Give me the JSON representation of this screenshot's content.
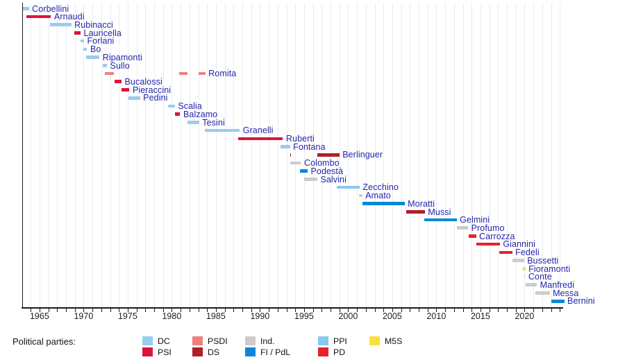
{
  "chart_data": {
    "type": "bar",
    "variant": "gantt-timeline",
    "description_of_content": "Timeline of Italian ministers responsible for university and scientific research, colored by political party",
    "x_range": [
      1963,
      2024.5
    ],
    "x_tick_interval_years": 1,
    "x_tick_labels": [
      "1965",
      "1970",
      "1975",
      "1980",
      "1985",
      "1990",
      "1995",
      "2000",
      "2005",
      "2010",
      "2015",
      "2020"
    ],
    "x_tick_label_years": [
      1965,
      1970,
      1975,
      1980,
      1985,
      1990,
      1995,
      2000,
      2005,
      2010,
      2015,
      2020
    ],
    "grid": "vertical-yearly",
    "legend_position": "bottom",
    "party_colors": {
      "DC": "#99CCEE",
      "PSI": "#DC143C",
      "PSDI": "#F08080",
      "DS": "#B01E28",
      "Ind.": "#CCCCCC",
      "FI/PdL": "#0B87D7",
      "PPI": "#89C8F0",
      "PD": "#E8212B",
      "M5S": "#F7E139"
    },
    "ministers": [
      {
        "name": "Corbellini",
        "party": "DC",
        "segments": [
          [
            1963.0,
            1963.8
          ]
        ]
      },
      {
        "name": "Arnaudi",
        "party": "PSI",
        "segments": [
          [
            1963.5,
            1966.3
          ]
        ]
      },
      {
        "name": "Rubinacci",
        "party": "DC",
        "segments": [
          [
            1966.2,
            1968.6
          ]
        ]
      },
      {
        "name": "Lauricella",
        "party": "PSI",
        "segments": [
          [
            1968.95,
            1969.65
          ]
        ]
      },
      {
        "name": "Forlani",
        "party": "DC",
        "segments": [
          [
            1969.65,
            1970.05
          ]
        ]
      },
      {
        "name": "Bo",
        "party": "DC",
        "segments": [
          [
            1970.0,
            1970.4
          ]
        ]
      },
      {
        "name": "Ripamonti",
        "party": "DC",
        "segments": [
          [
            1970.25,
            1971.8
          ]
        ]
      },
      {
        "name": "Sullo",
        "party": "DC",
        "segments": [
          [
            1972.2,
            1972.65
          ]
        ]
      },
      {
        "name": "Romita",
        "party": "PSDI",
        "segments": [
          [
            1972.4,
            1973.4
          ],
          [
            1980.8,
            1981.8
          ],
          [
            1983.0,
            1983.8
          ]
        ]
      },
      {
        "name": "Bucalossi",
        "party": "PSI",
        "segments": [
          [
            1973.5,
            1974.3
          ]
        ]
      },
      {
        "name": "Pieraccini",
        "party": "PSI",
        "segments": [
          [
            1974.3,
            1975.2
          ]
        ]
      },
      {
        "name": "Pedini",
        "party": "DC",
        "segments": [
          [
            1975.1,
            1976.4
          ]
        ]
      },
      {
        "name": "Scalia",
        "party": "DC",
        "segments": [
          [
            1979.55,
            1980.35
          ]
        ]
      },
      {
        "name": "Balzamo",
        "party": "PSI",
        "segments": [
          [
            1980.4,
            1980.95
          ]
        ]
      },
      {
        "name": "Tesini",
        "party": "DC",
        "segments": [
          [
            1981.75,
            1983.1
          ]
        ]
      },
      {
        "name": "Granelli",
        "party": "DC",
        "segments": [
          [
            1983.75,
            1987.7
          ]
        ]
      },
      {
        "name": "Ruberti",
        "party": "PSI",
        "segments": [
          [
            1987.5,
            1992.6
          ]
        ]
      },
      {
        "name": "Fontana",
        "party": "DC",
        "segments": [
          [
            1992.3,
            1993.4
          ]
        ]
      },
      {
        "name": "Berlinguer",
        "party": "DS",
        "segments": [
          [
            1993.4,
            1993.55
          ],
          [
            1996.5,
            1999.0
          ]
        ]
      },
      {
        "name": "Colombo",
        "party": "Ind.",
        "segments": [
          [
            1993.45,
            1994.65
          ]
        ]
      },
      {
        "name": "Podestà",
        "party": "FI/PdL",
        "segments": [
          [
            1994.5,
            1995.4
          ]
        ]
      },
      {
        "name": "Salvini",
        "party": "Ind.",
        "segments": [
          [
            1995.0,
            1996.5
          ]
        ]
      },
      {
        "name": "Zecchino",
        "party": "PPI",
        "segments": [
          [
            1998.7,
            2001.3
          ]
        ]
      },
      {
        "name": "Amato",
        "party": "Ind.",
        "segments": [
          [
            2001.2,
            2001.6
          ]
        ]
      },
      {
        "name": "Moratti",
        "party": "FI/PdL",
        "segments": [
          [
            2001.6,
            2006.4
          ]
        ]
      },
      {
        "name": "Mussi",
        "party": "DS",
        "segments": [
          [
            2006.6,
            2008.7
          ]
        ]
      },
      {
        "name": "Gelmini",
        "party": "FI/PdL",
        "segments": [
          [
            2008.6,
            2012.3
          ]
        ]
      },
      {
        "name": "Profumo",
        "party": "Ind.",
        "segments": [
          [
            2012.3,
            2013.6
          ]
        ]
      },
      {
        "name": "Carrozza",
        "party": "PD",
        "segments": [
          [
            2013.7,
            2014.5
          ]
        ]
      },
      {
        "name": "Giannini",
        "party": "PD",
        "segments": [
          [
            2014.5,
            2017.2
          ]
        ]
      },
      {
        "name": "Fedeli",
        "party": "PD",
        "segments": [
          [
            2017.1,
            2018.6
          ]
        ]
      },
      {
        "name": "Bussetti",
        "party": "Ind.",
        "segments": [
          [
            2018.65,
            2019.95
          ]
        ]
      },
      {
        "name": "Fioramonti",
        "party": "M5S",
        "segments": [
          [
            2019.8,
            2020.1
          ]
        ]
      },
      {
        "name": "Conte",
        "party": "Ind.",
        "segments": [
          [
            2019.98,
            2020.08
          ]
        ]
      },
      {
        "name": "Manfredi",
        "party": "Ind.",
        "segments": [
          [
            2020.1,
            2021.4
          ]
        ]
      },
      {
        "name": "Messa",
        "party": "Ind.",
        "segments": [
          [
            2021.2,
            2022.85
          ]
        ]
      },
      {
        "name": "Bernini",
        "party": "FI/PdL",
        "segments": [
          [
            2023.0,
            2024.5
          ]
        ]
      }
    ]
  },
  "legend": {
    "title": "Political parties:",
    "rows": [
      [
        {
          "label": "DC",
          "party": "DC"
        },
        {
          "label": "PSDI",
          "party": "PSDI"
        },
        {
          "label": "Ind.",
          "party": "Ind."
        },
        {
          "label": "PPI",
          "party": "PPI"
        },
        {
          "label": "M5S",
          "party": "M5S"
        }
      ],
      [
        {
          "label": "PSI",
          "party": "PSI"
        },
        {
          "label": "DS",
          "party": "DS"
        },
        {
          "label": "FI / PdL",
          "party": "FI/PdL"
        },
        {
          "label": "PD",
          "party": "PD"
        }
      ]
    ]
  }
}
